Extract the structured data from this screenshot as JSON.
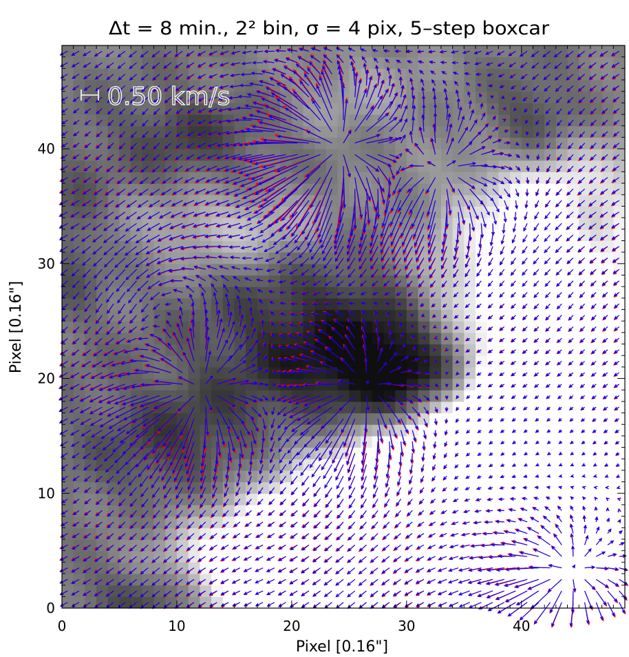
{
  "chart_data": {
    "type": "heatmap",
    "title": "Δt = 8 min., 2² bin, σ = 4 pix, 5–step boxcar",
    "xlabel": "Pixel [0.16\"]",
    "ylabel": "Pixel [0.16\"]",
    "xlim": [
      0,
      49
    ],
    "ylim": [
      0,
      49
    ],
    "x_ticks": [
      0,
      10,
      20,
      30,
      40
    ],
    "y_ticks": [
      0,
      10,
      20,
      30,
      40
    ],
    "scale_label": "0.50 km/s",
    "grid": false,
    "background": "grayscale intensity map",
    "overlay": "velocity vector field",
    "series": [
      {
        "color": "#ff0000"
      },
      {
        "color": "#0000ff"
      }
    ],
    "colors": {
      "red": "#ff0000",
      "blue": "#0000ff",
      "axes": "#000000",
      "scale_text": "#ffffff"
    }
  }
}
